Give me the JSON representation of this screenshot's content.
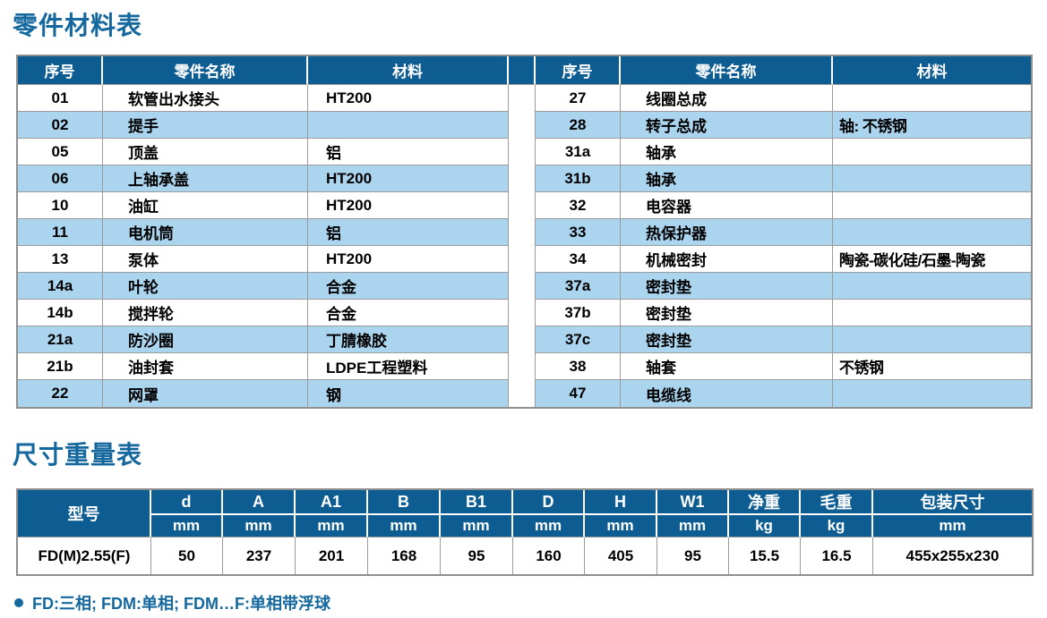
{
  "titles": {
    "parts": "零件材料表",
    "size": "尺寸重量表"
  },
  "parts_table": {
    "headers": [
      "序号",
      "零件名称",
      "材料"
    ],
    "left_rows": [
      [
        "01",
        "软管出水接头",
        "HT200"
      ],
      [
        "02",
        "提手",
        ""
      ],
      [
        "05",
        "顶盖",
        "铝"
      ],
      [
        "06",
        "上轴承盖",
        "HT200"
      ],
      [
        "10",
        "油缸",
        "HT200"
      ],
      [
        "11",
        "电机筒",
        "铝"
      ],
      [
        "13",
        "泵体",
        "HT200"
      ],
      [
        "14a",
        "叶轮",
        "合金"
      ],
      [
        "14b",
        "搅拌轮",
        "合金"
      ],
      [
        "21a",
        "防沙圈",
        "丁腈橡胶"
      ],
      [
        "21b",
        "油封套",
        "LDPE工程塑料"
      ],
      [
        "22",
        "网罩",
        "钢"
      ]
    ],
    "right_rows": [
      [
        "27",
        "线圈总成",
        ""
      ],
      [
        "28",
        "转子总成",
        "轴: 不锈钢"
      ],
      [
        "31a",
        "轴承",
        ""
      ],
      [
        "31b",
        "轴承",
        ""
      ],
      [
        "32",
        "电容器",
        ""
      ],
      [
        "33",
        "热保护器",
        ""
      ],
      [
        "34",
        "机械密封",
        "陶瓷-碳化硅/石墨-陶瓷"
      ],
      [
        "37a",
        "密封垫",
        ""
      ],
      [
        "37b",
        "密封垫",
        ""
      ],
      [
        "37c",
        "密封垫",
        ""
      ],
      [
        "38",
        "轴套",
        "不锈钢"
      ],
      [
        "47",
        "电缆线",
        ""
      ]
    ]
  },
  "size_table": {
    "model_header": "型号",
    "columns": [
      {
        "label": "d",
        "unit": "mm"
      },
      {
        "label": "A",
        "unit": "mm"
      },
      {
        "label": "A1",
        "unit": "mm"
      },
      {
        "label": "B",
        "unit": "mm"
      },
      {
        "label": "B1",
        "unit": "mm"
      },
      {
        "label": "D",
        "unit": "mm"
      },
      {
        "label": "H",
        "unit": "mm"
      },
      {
        "label": "W1",
        "unit": "mm"
      },
      {
        "label": "净重",
        "unit": "kg"
      },
      {
        "label": "毛重",
        "unit": "kg"
      },
      {
        "label": "包装尺寸",
        "unit": "mm"
      }
    ],
    "rows": [
      {
        "model": "FD(M)2.55(F)",
        "values": [
          "50",
          "237",
          "201",
          "168",
          "95",
          "160",
          "405",
          "95",
          "15.5",
          "16.5",
          "455x255x230"
        ]
      }
    ]
  },
  "footnote": {
    "text": "FD:三相; FDM:单相; FDM…F:单相带浮球"
  },
  "colors": {
    "header_blue": "#0e5d92",
    "stripe_blue": "#abd4ee",
    "title_blue": "#15689e",
    "grid_gray": "#9b9b9b"
  }
}
